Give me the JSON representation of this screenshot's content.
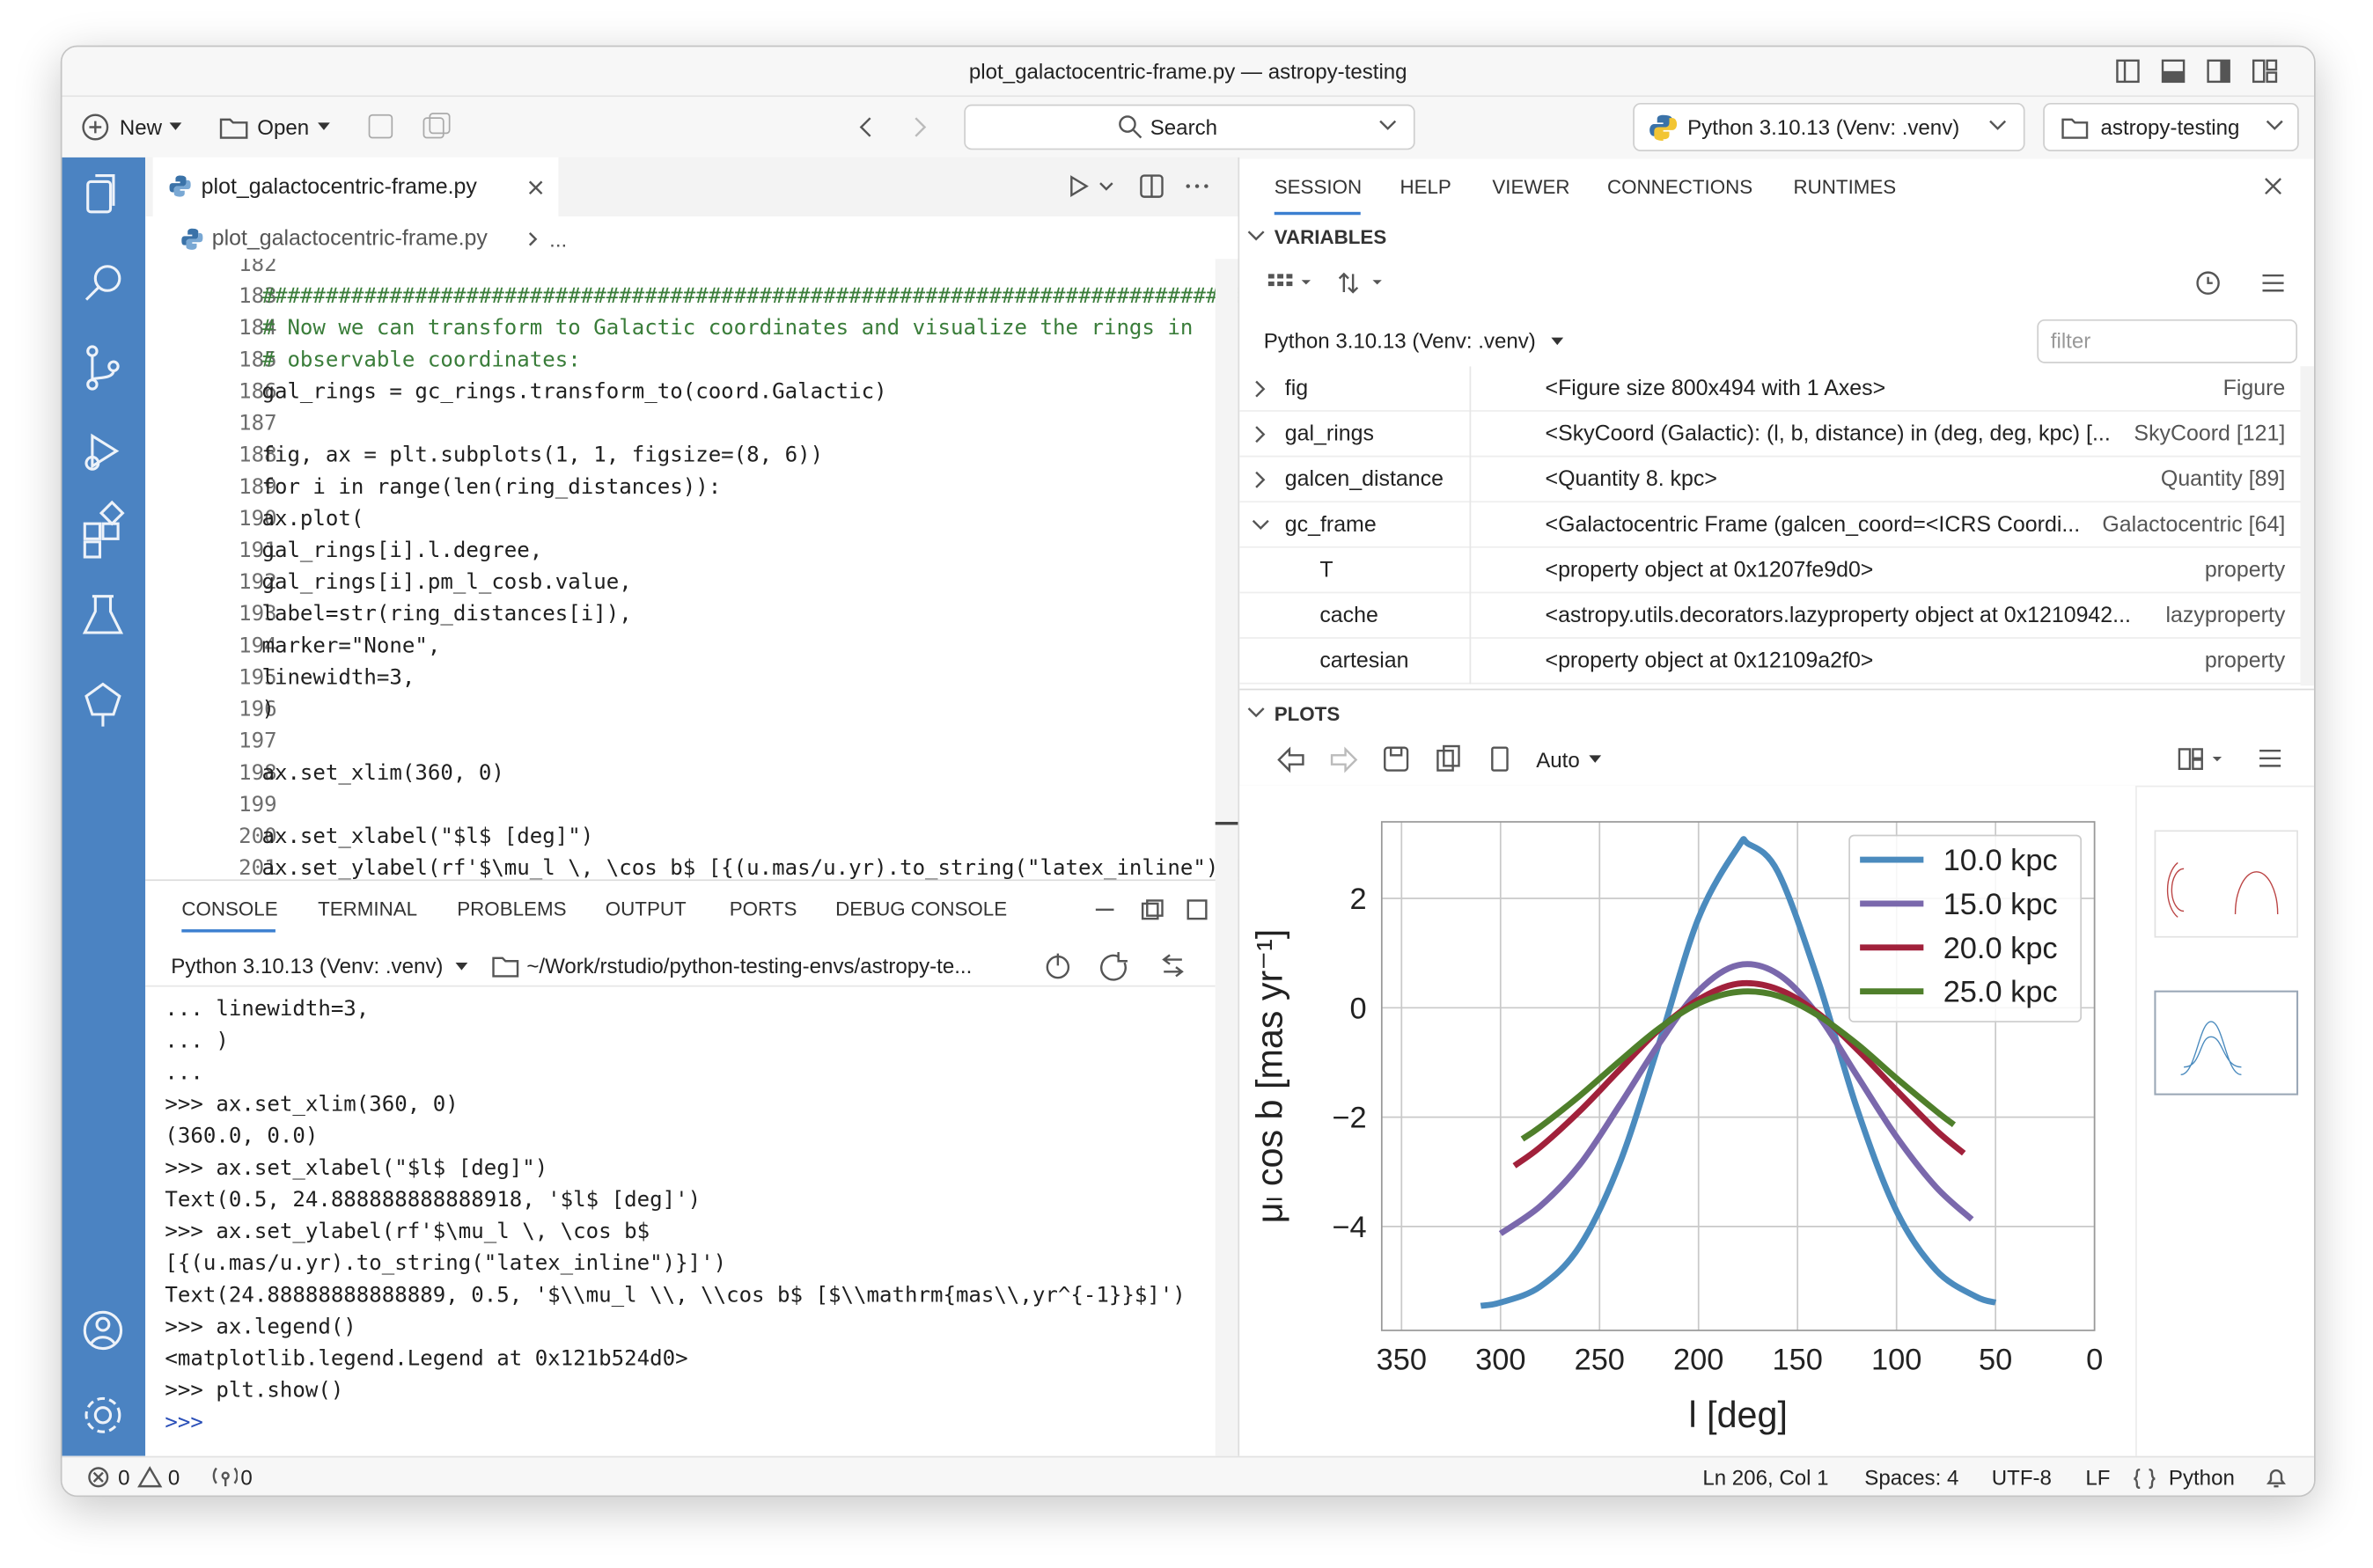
{
  "window": {
    "title": "plot_galactocentric-frame.py — astropy-testing"
  },
  "toolbar": {
    "new": "New",
    "open": "Open",
    "search": "Search",
    "interpreter": "Python 3.10.13 (Venv: .venv)",
    "project": "astropy-testing"
  },
  "editor": {
    "tab": "plot_galactocentric-frame.py",
    "breadcrumb": {
      "file": "plot_galactocentric-frame.py",
      "more": "..."
    },
    "lines": [
      {
        "number": 182,
        "code": ""
      },
      {
        "number": 183,
        "code": "################################################################################"
      },
      {
        "number": 184,
        "code": "# Now we can transform to Galactic coordinates and visualize the rings in"
      },
      {
        "number": 185,
        "code": "# observable coordinates:"
      },
      {
        "number": 186,
        "code": "gal_rings = gc_rings.transform_to(coord.Galactic)"
      },
      {
        "number": 187,
        "code": ""
      },
      {
        "number": 188,
        "code": "fig, ax = plt.subplots(1, 1, figsize=(8, 6))"
      },
      {
        "number": 189,
        "code": "for i in range(len(ring_distances)):"
      },
      {
        "number": 190,
        "code": "    ax.plot("
      },
      {
        "number": 191,
        "code": "        gal_rings[i].l.degree,"
      },
      {
        "number": 192,
        "code": "        gal_rings[i].pm_l_cosb.value,"
      },
      {
        "number": 193,
        "code": "        label=str(ring_distances[i]),"
      },
      {
        "number": 194,
        "code": "        marker=\"None\","
      },
      {
        "number": 195,
        "code": "        linewidth=3,"
      },
      {
        "number": 196,
        "code": "    )"
      },
      {
        "number": 197,
        "code": ""
      },
      {
        "number": 198,
        "code": "ax.set_xlim(360, 0)"
      },
      {
        "number": 199,
        "code": ""
      },
      {
        "number": 200,
        "code": "ax.set_xlabel(\"$l$ [deg]\")"
      },
      {
        "number": 201,
        "code": "ax.set_ylabel(rf'$\\mu_l \\, \\cos b$ [{(u.mas/u.yr).to_string(\"latex_inline\")}]"
      }
    ]
  },
  "panel": {
    "tabs": [
      "CONSOLE",
      "TERMINAL",
      "PROBLEMS",
      "OUTPUT",
      "PORTS",
      "DEBUG CONSOLE"
    ],
    "interpreter": "Python 3.10.13 (Venv: .venv)",
    "path": "~/Work/rstudio/python-testing-envs/astropy-te...",
    "lines": [
      "...         linewidth=3,",
      "...     )",
      "...",
      ">>> ax.set_xlim(360, 0)",
      "(360.0, 0.0)",
      ">>> ax.set_xlabel(\"$l$ [deg]\")",
      "Text(0.5, 24.888888888888918, '$l$ [deg]')",
      ">>> ax.set_ylabel(rf'$\\mu_l \\, \\cos b$",
      "[{(u.mas/u.yr).to_string(\"latex_inline\")}]')",
      "Text(24.88888888888889, 0.5, '$\\\\mu_l \\\\, \\\\cos b$ [$\\\\mathrm{mas\\\\,yr^{-1}}$]')",
      ">>> ax.legend()",
      "<matplotlib.legend.Legend at 0x121b524d0>",
      ">>> plt.show()",
      ">>>"
    ]
  },
  "session": {
    "tabs": [
      "SESSION",
      "HELP",
      "VIEWER",
      "CONNECTIONS",
      "RUNTIMES"
    ],
    "variables": {
      "title": "VARIABLES",
      "interpreter": "Python 3.10.13 (Venv: .venv)",
      "filter": "filter",
      "items": [
        {
          "name": "fig",
          "value": "<Figure size 800x494 with 1 Axes>",
          "type": "Figure"
        },
        {
          "name": "gal_rings",
          "value": "<SkyCoord (Galactic): (l, b, distance) in (deg, deg, kpc) [...",
          "type": "SkyCoord [121]"
        },
        {
          "name": "galcen_distance",
          "value": "<Quantity 8. kpc>",
          "type": "Quantity [89]"
        },
        {
          "name": "gc_frame",
          "value": "<Galactocentric Frame (galcen_coord=<ICRS Coordi...",
          "type": "Galactocentric [64]",
          "children": [
            {
              "name": "T",
              "value": "<property object at 0x1207fe9d0>",
              "type": "property"
            },
            {
              "name": "cache",
              "value": "<astropy.utils.decorators.lazyproperty object at 0x1210942...",
              "type": "lazyproperty"
            },
            {
              "name": "cartesian",
              "value": "<property object at 0x12109a2f0>",
              "type": "property"
            }
          ]
        }
      ]
    },
    "plots": {
      "title": "PLOTS",
      "zoom": "Auto"
    }
  },
  "chart_data": {
    "type": "line",
    "xlabel": "l [deg]",
    "ylabel": "μₗ cos b [mas yr⁻¹]",
    "xlim": [
      360,
      0
    ],
    "xticks": [
      350,
      300,
      250,
      200,
      150,
      100,
      50,
      0
    ],
    "ylim": [
      -5.9,
      3.4
    ],
    "yticks": [
      {
        "value": -4,
        "label": "−4"
      },
      {
        "value": -2,
        "label": "−2"
      },
      0,
      2
    ],
    "grid": true,
    "legend": "upper right",
    "series": [
      {
        "name": "10.0 kpc",
        "color": "#4b8bbe",
        "x": [
          310,
          300,
          280,
          260,
          240,
          220,
          200,
          180,
          175,
          160,
          140,
          120,
          100,
          80,
          60,
          50
        ],
        "values": [
          -5.45,
          -5.39,
          -5.1,
          -4.36,
          -2.86,
          -0.66,
          1.64,
          2.94,
          3.0,
          2.49,
          0.54,
          -1.84,
          -3.72,
          -4.8,
          -5.28,
          -5.39
        ]
      },
      {
        "name": "15.0 kpc",
        "color": "#7a68ac",
        "x": [
          300,
          280,
          260,
          240,
          220,
          200,
          180,
          160,
          140,
          120,
          100,
          80,
          62
        ],
        "values": [
          -4.13,
          -3.63,
          -2.87,
          -1.79,
          -0.66,
          0.31,
          0.78,
          0.62,
          -0.12,
          -1.24,
          -2.36,
          -3.28,
          -3.87
        ]
      },
      {
        "name": "20.0 kpc",
        "color": "#a1213b",
        "x": [
          293,
          280,
          260,
          240,
          220,
          200,
          180,
          160,
          140,
          120,
          100,
          80,
          66
        ],
        "values": [
          -2.89,
          -2.55,
          -1.89,
          -1.14,
          -0.4,
          0.15,
          0.44,
          0.34,
          -0.09,
          -0.76,
          -1.51,
          -2.24,
          -2.66
        ]
      },
      {
        "name": "25.0 kpc",
        "color": "#4f7f2b",
        "x": [
          289,
          280,
          260,
          240,
          220,
          200,
          180,
          160,
          140,
          120,
          100,
          80,
          71
        ],
        "values": [
          -2.4,
          -2.18,
          -1.61,
          -0.98,
          -0.38,
          0.08,
          0.29,
          0.22,
          -0.13,
          -0.66,
          -1.29,
          -1.89,
          -2.14
        ]
      }
    ]
  },
  "status": {
    "errors": "0",
    "warnings": "0",
    "ports": "0",
    "position": "Ln 206, Col 1",
    "spaces": "Spaces: 4",
    "encoding": "UTF-8",
    "eol": "LF",
    "language": "Python"
  }
}
